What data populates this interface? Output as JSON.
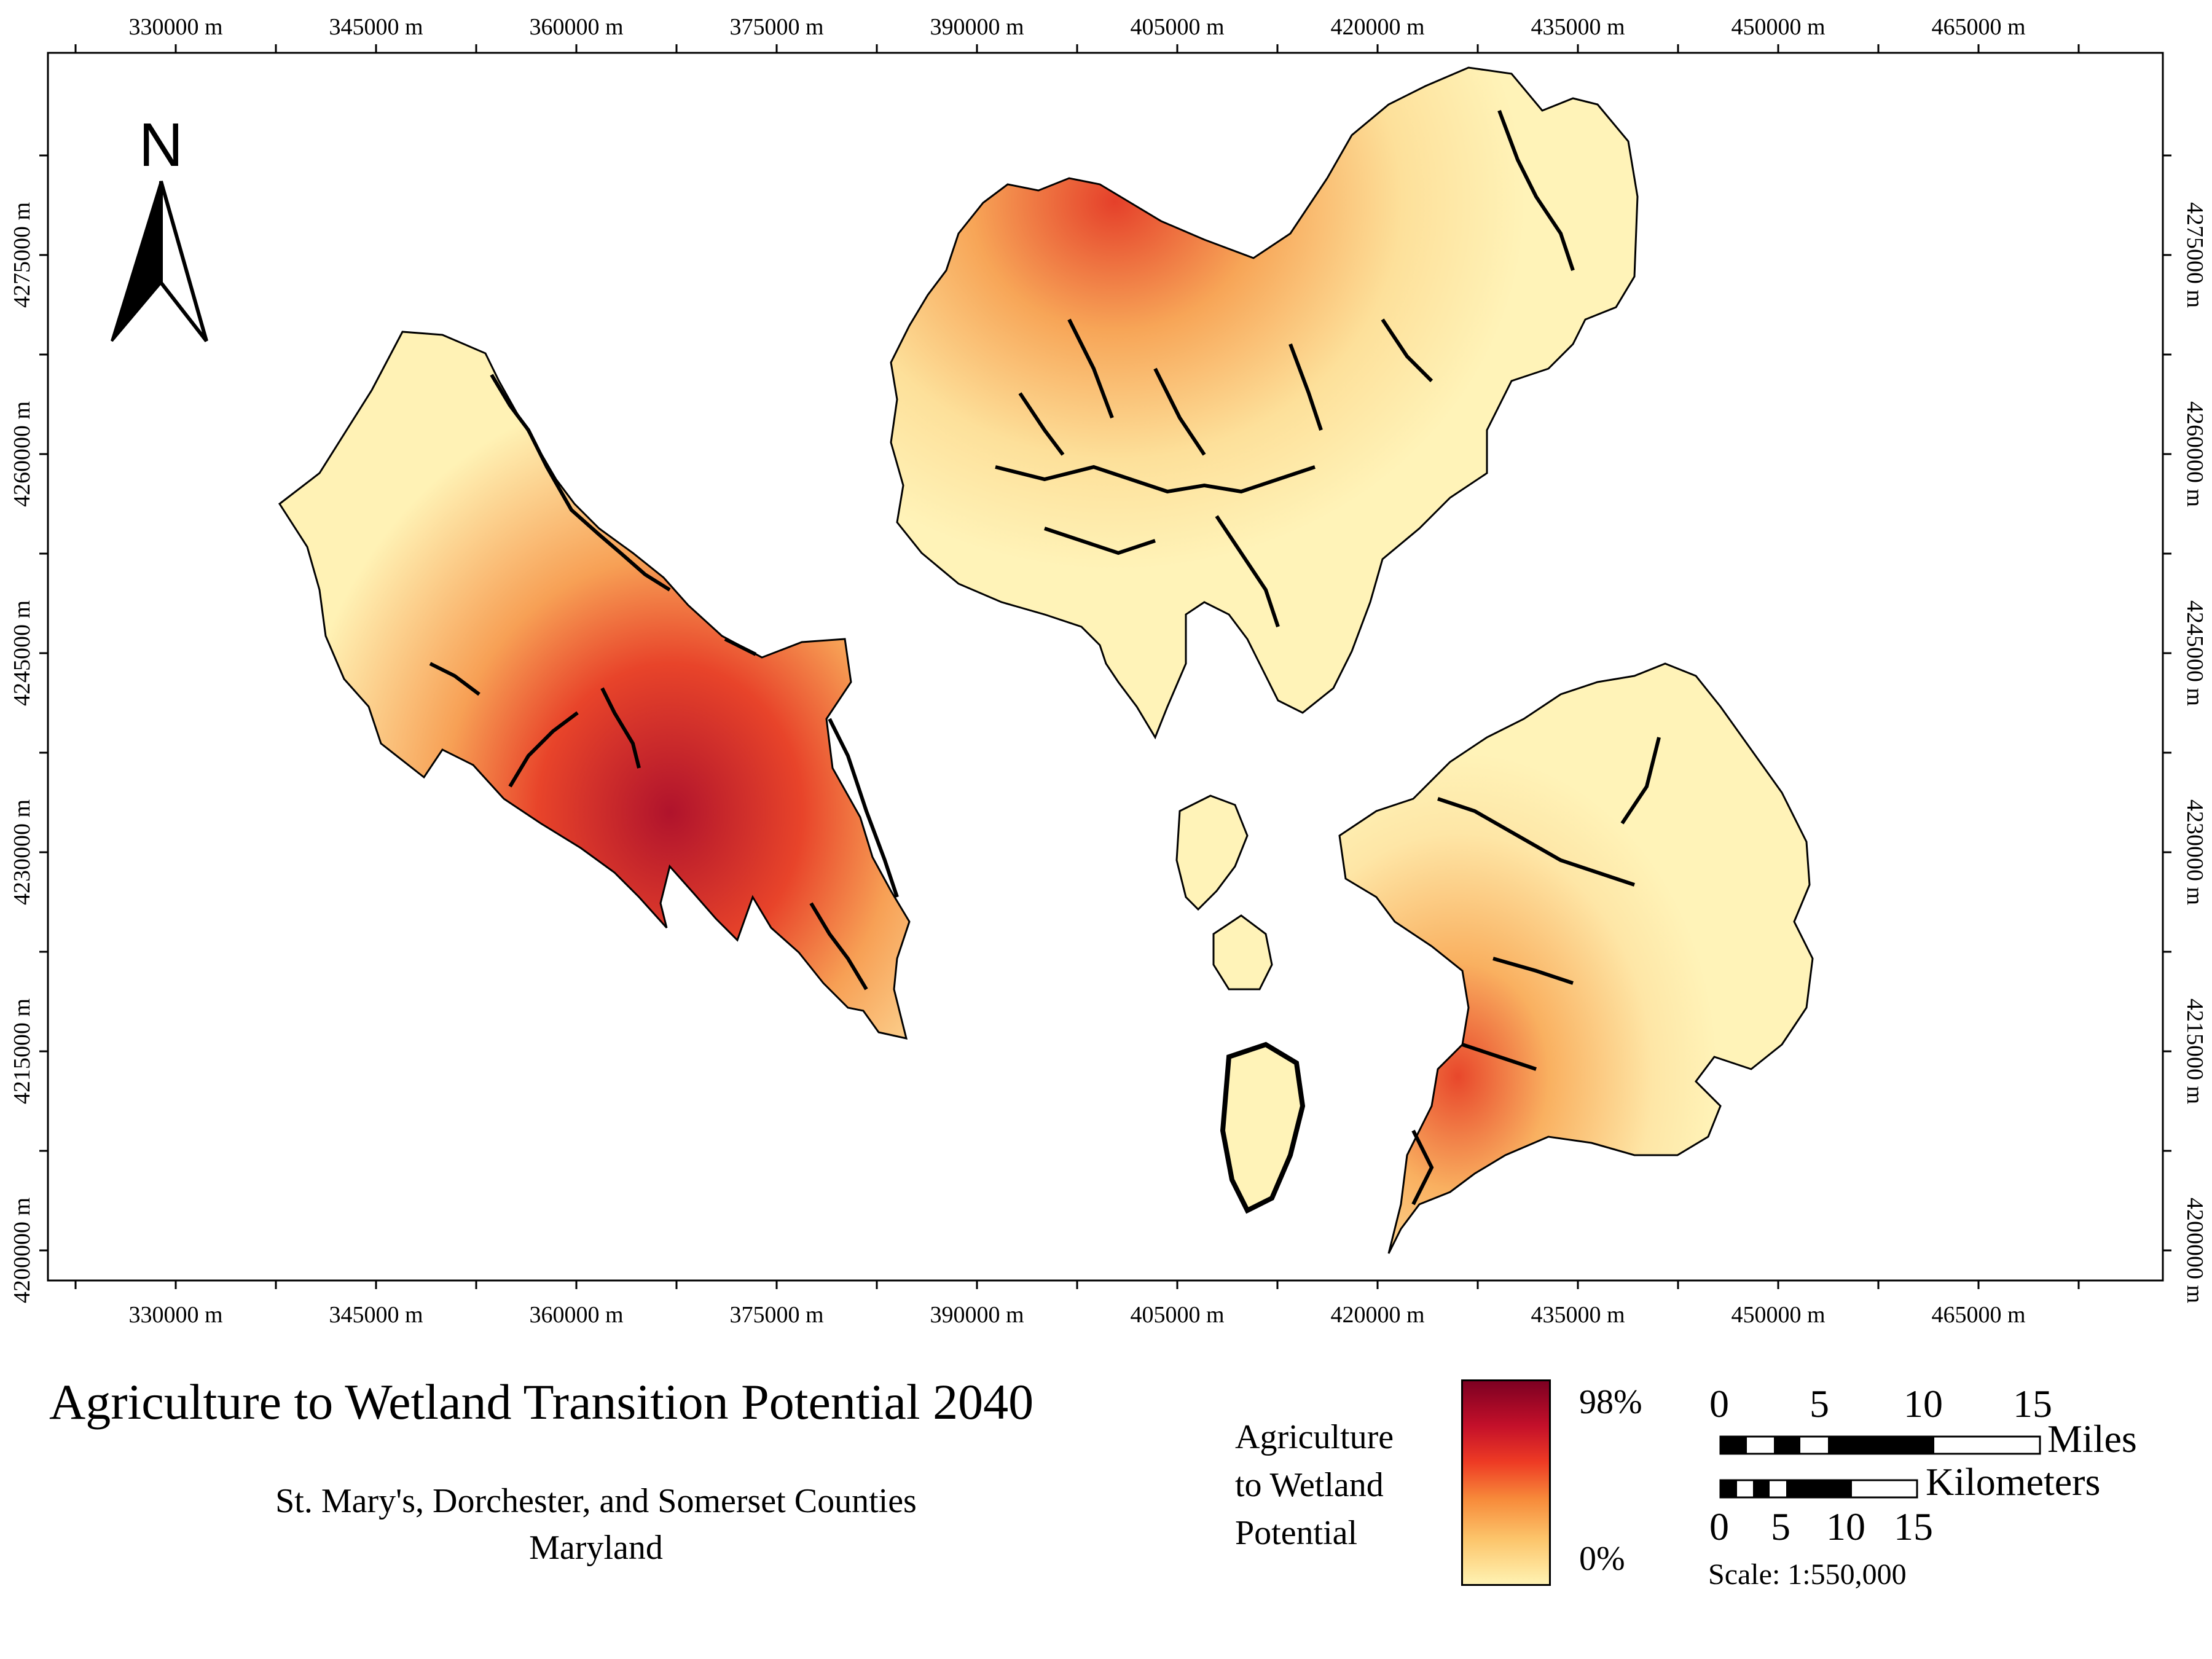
{
  "map": {
    "title": "Agriculture to Wetland Transition Potential 2040",
    "subtitle_lines": [
      "St. Mary's, Dorchester, and Somerset Counties",
      "Maryland"
    ],
    "north_label": "N",
    "x_ticks": [
      "330000 m",
      "345000 m",
      "360000 m",
      "375000 m",
      "390000 m",
      "405000 m",
      "420000 m",
      "435000 m",
      "450000 m",
      "465000 m"
    ],
    "y_ticks": [
      "4275000 m",
      "4260000 m",
      "4245000 m",
      "4230000 m",
      "4215000 m",
      "4200000 m"
    ],
    "legend": {
      "label_lines": [
        "Agriculture",
        "to Wetland",
        "Potential"
      ],
      "max": "98%",
      "min": "0%",
      "colors": [
        "#7d0022",
        "#c4102a",
        "#ee3b24",
        "#f78a3a",
        "#fcc56b",
        "#fff2b2"
      ]
    },
    "scalebar": {
      "miles_ticks": [
        "0",
        "5",
        "10",
        "15"
      ],
      "miles_label": "Miles",
      "km_ticks": [
        "0",
        "5",
        "10",
        "15"
      ],
      "km_label": "Kilometers",
      "scale_text": "Scale: 1:550,000"
    }
  }
}
